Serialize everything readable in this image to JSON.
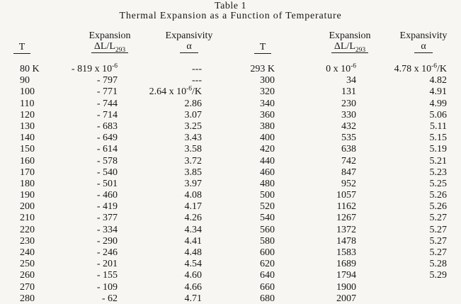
{
  "title": "Table 1",
  "subtitle": "Thermal Expansion as a Function of Temperature",
  "headers": {
    "t_label": "T",
    "expansion_label": "Expansion",
    "expansion_formula_base": "ΔL/L",
    "expansion_formula_sub": "293",
    "expansivity_label": "Expansivity",
    "alpha_label": "α"
  },
  "left_rows": [
    {
      "t": "80 K",
      "expansion": {
        "base": "- 819 x 10",
        "sup": "-6"
      },
      "expansivity": "---"
    },
    {
      "t": "90",
      "expansion": "- 797",
      "expansivity": "---"
    },
    {
      "t": "100",
      "expansion": "- 771",
      "expansivity": {
        "base": "2.64 x 10",
        "sup": "-6",
        "tail": "/K"
      }
    },
    {
      "t": "110",
      "expansion": "- 744",
      "expansivity": "2.86"
    },
    {
      "t": "120",
      "expansion": "- 714",
      "expansivity": "3.07"
    },
    {
      "t": "130",
      "expansion": "- 683",
      "expansivity": "3.25"
    },
    {
      "t": "140",
      "expansion": "- 649",
      "expansivity": "3.43"
    },
    {
      "t": "150",
      "expansion": "- 614",
      "expansivity": "3.58"
    },
    {
      "t": "160",
      "expansion": "- 578",
      "expansivity": "3.72"
    },
    {
      "t": "170",
      "expansion": "- 540",
      "expansivity": "3.85"
    },
    {
      "t": "180",
      "expansion": "- 501",
      "expansivity": "3.97"
    },
    {
      "t": "190",
      "expansion": "- 460",
      "expansivity": "4.08"
    },
    {
      "t": "200",
      "expansion": "- 419",
      "expansivity": "4.17"
    },
    {
      "t": "210",
      "expansion": "- 377",
      "expansivity": "4.26"
    },
    {
      "t": "220",
      "expansion": "- 334",
      "expansivity": "4.34"
    },
    {
      "t": "230",
      "expansion": "- 290",
      "expansivity": "4.41"
    },
    {
      "t": "240",
      "expansion": "- 246",
      "expansivity": "4.48"
    },
    {
      "t": "250",
      "expansion": "- 201",
      "expansivity": "4.54"
    },
    {
      "t": "260",
      "expansion": "- 155",
      "expansivity": "4.60"
    },
    {
      "t": "270",
      "expansion": "- 109",
      "expansivity": "4.66"
    },
    {
      "t": "280",
      "expansion": "- 62",
      "expansivity": "4.71"
    }
  ],
  "right_rows": [
    {
      "t": "293 K",
      "expansion": {
        "base": "0 x 10",
        "sup": "-6"
      },
      "expansivity": {
        "base": "4.78 x 10",
        "sup": "-6",
        "tail": "/K"
      }
    },
    {
      "t": "300",
      "expansion": "34",
      "expansivity": "4.82"
    },
    {
      "t": "320",
      "expansion": "131",
      "expansivity": "4.91"
    },
    {
      "t": "340",
      "expansion": "230",
      "expansivity": "4.99"
    },
    {
      "t": "360",
      "expansion": "330",
      "expansivity": "5.06"
    },
    {
      "t": "380",
      "expansion": "432",
      "expansivity": "5.11"
    },
    {
      "t": "400",
      "expansion": "535",
      "expansivity": "5.15"
    },
    {
      "t": "420",
      "expansion": "638",
      "expansivity": "5.19"
    },
    {
      "t": "440",
      "expansion": "742",
      "expansivity": "5.21"
    },
    {
      "t": "460",
      "expansion": "847",
      "expansivity": "5.23"
    },
    {
      "t": "480",
      "expansion": "952",
      "expansivity": "5.25"
    },
    {
      "t": "500",
      "expansion": "1057",
      "expansivity": "5.26"
    },
    {
      "t": "520",
      "expansion": "1162",
      "expansivity": "5.26"
    },
    {
      "t": "540",
      "expansion": "1267",
      "expansivity": "5.27"
    },
    {
      "t": "560",
      "expansion": "1372",
      "expansivity": "5.27"
    },
    {
      "t": "580",
      "expansion": "1478",
      "expansivity": "5.27"
    },
    {
      "t": "600",
      "expansion": "1583",
      "expansivity": "5.27"
    },
    {
      "t": "620",
      "expansion": "1689",
      "expansivity": "5.28"
    },
    {
      "t": "640",
      "expansion": "1794",
      "expansivity": "5.29"
    },
    {
      "t": "660",
      "expansion": "1900",
      "expansivity": ""
    },
    {
      "t": "680",
      "expansion": "2007",
      "expansivity": ""
    }
  ]
}
